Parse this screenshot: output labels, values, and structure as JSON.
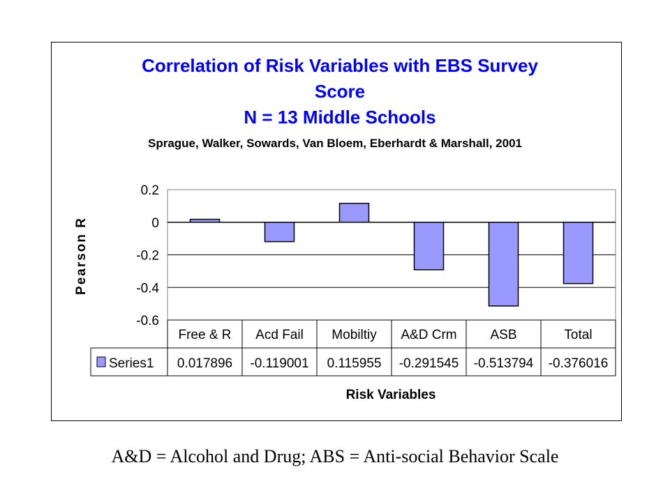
{
  "chart_data": {
    "type": "bar",
    "title": [
      "Correlation of Risk Variables with EBS Survey",
      "Score",
      "N = 13 Middle Schools"
    ],
    "subtitle": "Sprague, Walker, Sowards, Van Bloem, Eberhardt & Marshall, 2001",
    "xlabel": "Risk Variables",
    "ylabel": "Pearson R",
    "categories": [
      "Free & R",
      "Acd Fail",
      "Mobiltiy",
      "A&D Crm",
      "ASB",
      "Total"
    ],
    "series": [
      {
        "name": "Series1",
        "values": [
          0.017896,
          -0.119001,
          0.115955,
          -0.291545,
          -0.513794,
          -0.376016
        ],
        "value_labels": [
          "0.017896",
          "-0.119001",
          "0.115955",
          "-0.291545",
          "-0.513794",
          "-0.376016"
        ]
      }
    ],
    "ylim": [
      -0.6,
      0.2
    ],
    "yticks": [
      0.2,
      0,
      -0.2,
      -0.4,
      -0.6
    ],
    "ytick_labels": [
      "0.2",
      "0",
      "-0.2",
      "-0.4",
      "-0.6"
    ],
    "grid": true,
    "legend": "data-table",
    "data_table": true,
    "colors": {
      "bar_fill": "#9999ff",
      "bar_stroke": "#000000",
      "title": "#0000ff"
    }
  },
  "caption": "A&D = Alcohol and Drug; ABS = Anti-social Behavior Scale"
}
